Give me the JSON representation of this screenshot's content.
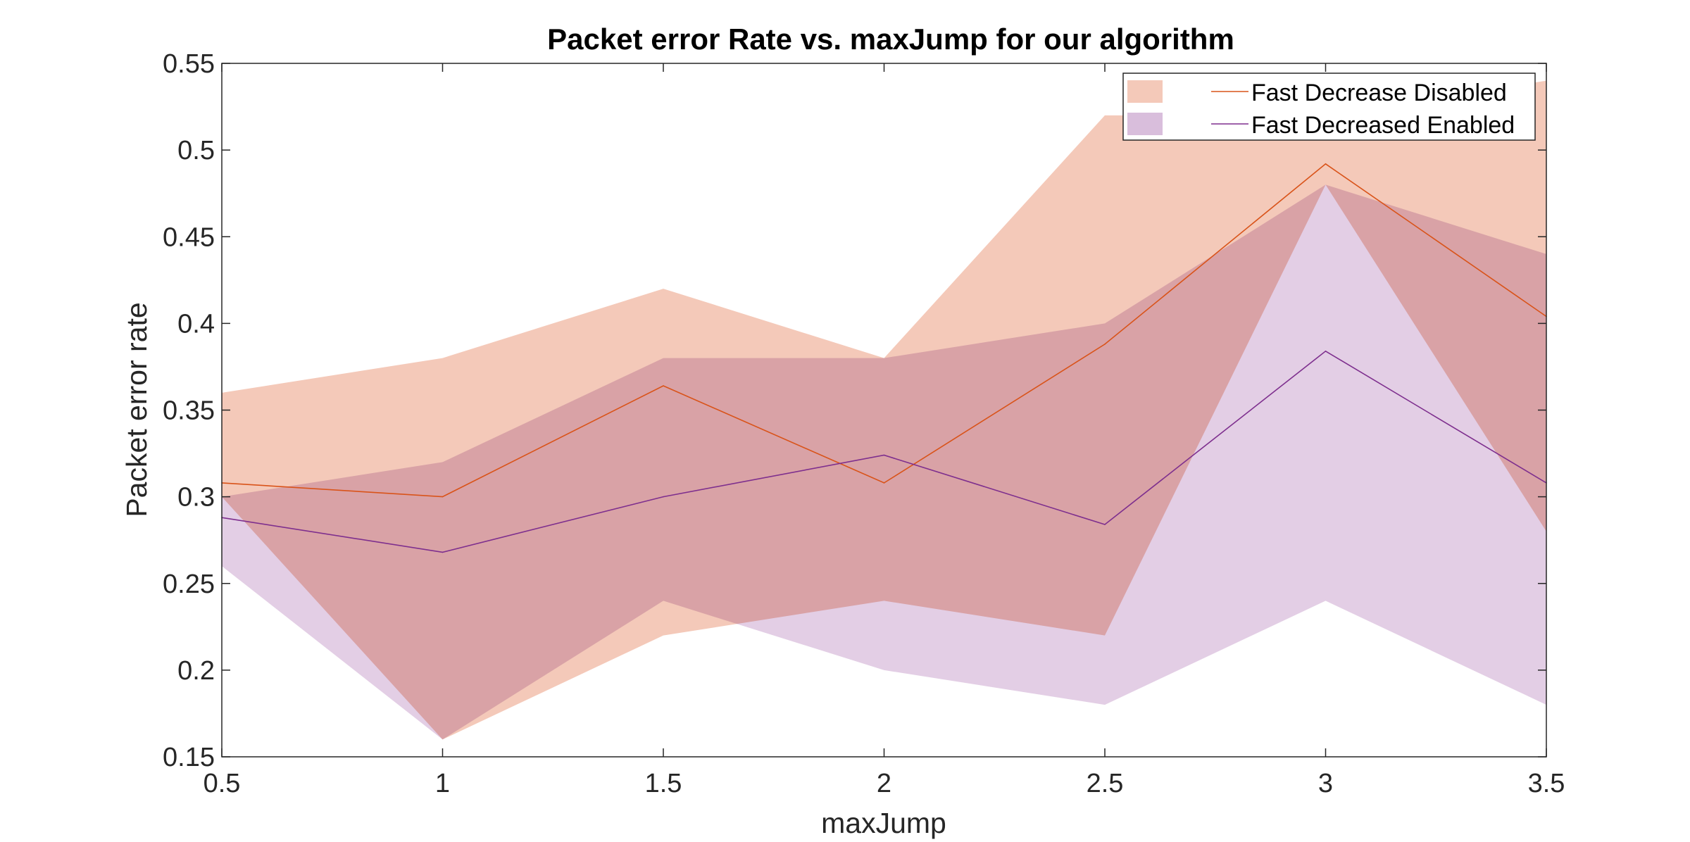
{
  "chart_data": {
    "type": "area",
    "title": "Packet error Rate vs. maxJump for our algorithm",
    "xlabel": "maxJump",
    "ylabel": "Packet error rate",
    "xlim": [
      0.5,
      3.5
    ],
    "ylim": [
      0.15,
      0.55
    ],
    "xticks": [
      "0.5",
      "1",
      "1.5",
      "2",
      "2.5",
      "3",
      "3.5"
    ],
    "yticks": [
      "0.15",
      "0.2",
      "0.25",
      "0.3",
      "0.35",
      "0.4",
      "0.45",
      "0.5",
      "0.55"
    ],
    "grid": false,
    "legend_position": "top-right",
    "x": [
      0.5,
      1,
      1.5,
      2,
      2.5,
      3,
      3.5
    ],
    "series": [
      {
        "name": "Fast Decrease Disabled",
        "line_color": "#D95319",
        "band_color": "#F4C9B9",
        "values": [
          0.308,
          0.3,
          0.364,
          0.308,
          0.388,
          0.492,
          0.404
        ],
        "upper": [
          0.36,
          0.38,
          0.42,
          0.38,
          0.52,
          0.52,
          0.54
        ],
        "lower": [
          0.3,
          0.16,
          0.22,
          0.24,
          0.22,
          0.48,
          0.28
        ]
      },
      {
        "name": "Fast Decreased Enabled",
        "line_color": "#7E2F8E",
        "band_color": "#D9BEDC",
        "values": [
          0.288,
          0.268,
          0.3,
          0.324,
          0.284,
          0.384,
          0.308
        ],
        "upper": [
          0.3,
          0.32,
          0.38,
          0.38,
          0.4,
          0.48,
          0.44
        ],
        "lower": [
          0.26,
          0.16,
          0.24,
          0.2,
          0.18,
          0.24,
          0.18
        ]
      }
    ],
    "overlap_color": "#D09BAD"
  }
}
